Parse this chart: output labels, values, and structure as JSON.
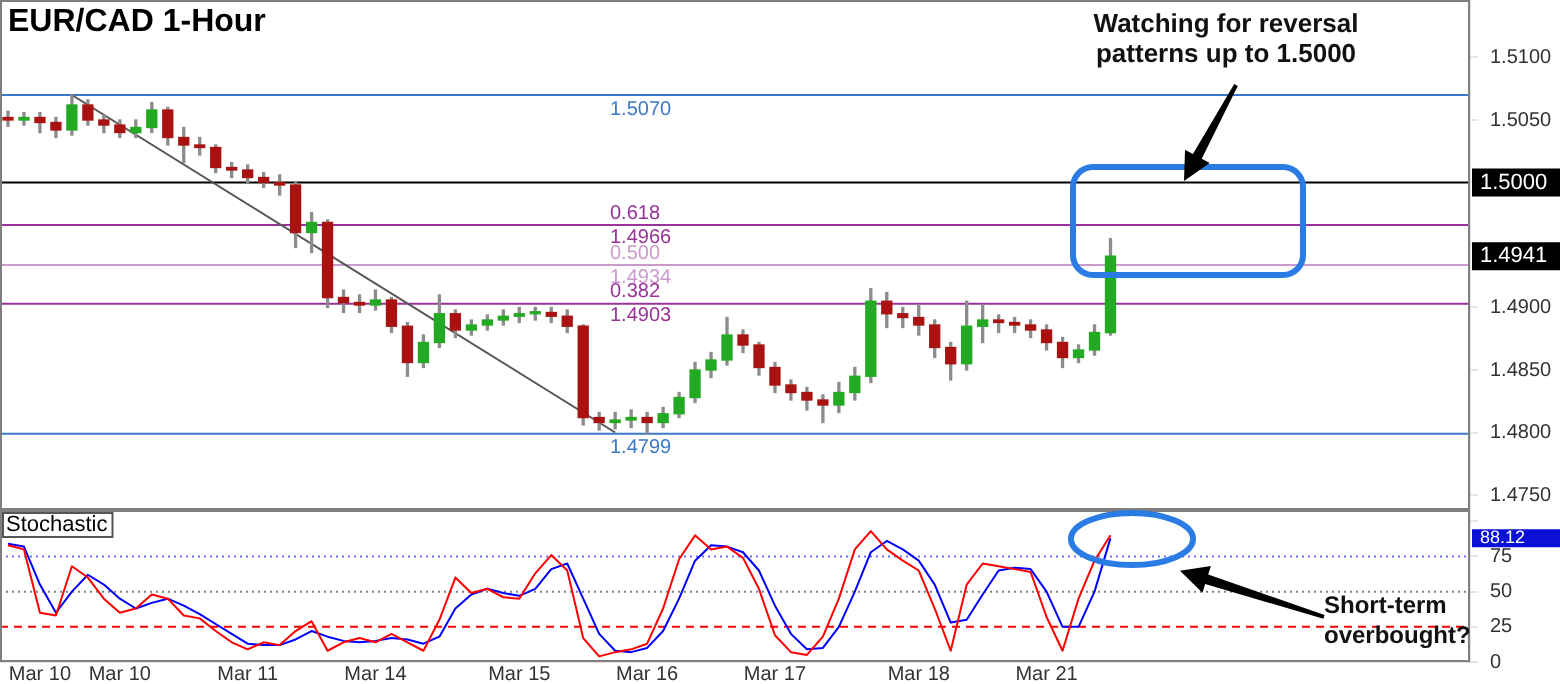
{
  "chart_data": [
    {
      "type": "candlestick",
      "title": "EUR/CAD 1-Hour",
      "categories": [
        null,
        null,
        null,
        null,
        null,
        null,
        null,
        null,
        null,
        null,
        null,
        null,
        null,
        null,
        null,
        null,
        null,
        null,
        null,
        null,
        null,
        null,
        null,
        null,
        null,
        null,
        null,
        null,
        null,
        null,
        null,
        null,
        null,
        null,
        null,
        null,
        null,
        null,
        null,
        null,
        null,
        null,
        null,
        null,
        null,
        null,
        null,
        null,
        null,
        null,
        null,
        null,
        null,
        null,
        null,
        null,
        null,
        null,
        null,
        null,
        null,
        null,
        null,
        null,
        null,
        null,
        null,
        null,
        null,
        null,
        null,
        null,
        null,
        null,
        null,
        null,
        null,
        null,
        null,
        null,
        null,
        null,
        null,
        null,
        null,
        null,
        null,
        null,
        null,
        null,
        null,
        null
      ],
      "ohlc": [
        [
          1.5052,
          1.5057,
          1.5045,
          1.505
        ],
        [
          1.505,
          1.5056,
          1.5046,
          1.5052
        ],
        [
          1.5052,
          1.5056,
          1.504,
          1.5048
        ],
        [
          1.5048,
          1.5052,
          1.5036,
          1.5042
        ],
        [
          1.5042,
          1.507,
          1.5038,
          1.5062
        ],
        [
          1.5062,
          1.5066,
          1.5046,
          1.505
        ],
        [
          1.505,
          1.5054,
          1.504,
          1.5046
        ],
        [
          1.5046,
          1.505,
          1.5036,
          1.504
        ],
        [
          1.504,
          1.505,
          1.5036,
          1.5044
        ],
        [
          1.5044,
          1.5064,
          1.504,
          1.5058
        ],
        [
          1.5058,
          1.506,
          1.503,
          1.5036
        ],
        [
          1.5036,
          1.5044,
          1.5016,
          1.503
        ],
        [
          1.503,
          1.5036,
          1.5022,
          1.5028
        ],
        [
          1.5028,
          1.503,
          1.5008,
          1.5012
        ],
        [
          1.5012,
          1.5016,
          1.5004,
          1.501
        ],
        [
          1.501,
          1.5014,
          1.5,
          1.5004
        ],
        [
          1.5004,
          1.5008,
          1.4996,
          1.5
        ],
        [
          1.5,
          1.5006,
          1.499,
          1.4998
        ],
        [
          1.4998,
          1.5,
          1.4948,
          1.496
        ],
        [
          1.496,
          1.4976,
          1.4944,
          1.4968
        ],
        [
          1.4968,
          1.497,
          1.49,
          1.4908
        ],
        [
          1.4908,
          1.4914,
          1.4896,
          1.4904
        ],
        [
          1.4904,
          1.491,
          1.4896,
          1.4902
        ],
        [
          1.4902,
          1.4914,
          1.4898,
          1.4906
        ],
        [
          1.4906,
          1.4908,
          1.488,
          1.4885
        ],
        [
          1.4885,
          1.4888,
          1.4845,
          1.4856
        ],
        [
          1.4856,
          1.4878,
          1.4852,
          1.4872
        ],
        [
          1.4872,
          1.491,
          1.4868,
          1.4895
        ],
        [
          1.4895,
          1.4898,
          1.4876,
          1.4882
        ],
        [
          1.4882,
          1.489,
          1.4878,
          1.4886
        ],
        [
          1.4886,
          1.4894,
          1.4882,
          1.489
        ],
        [
          1.489,
          1.4898,
          1.4886,
          1.4893
        ],
        [
          1.4893,
          1.49,
          1.4888,
          1.4895
        ],
        [
          1.4895,
          1.49,
          1.489,
          1.4896
        ],
        [
          1.4896,
          1.49,
          1.4888,
          1.4893
        ],
        [
          1.4893,
          1.4898,
          1.488,
          1.4885
        ],
        [
          1.4885,
          1.4886,
          1.4806,
          1.4812
        ],
        [
          1.4812,
          1.4816,
          1.4802,
          1.4808
        ],
        [
          1.4808,
          1.4816,
          1.4803,
          1.481
        ],
        [
          1.481,
          1.4818,
          1.4804,
          1.4812
        ],
        [
          1.4812,
          1.4816,
          1.4799,
          1.4808
        ],
        [
          1.4808,
          1.482,
          1.4804,
          1.4815
        ],
        [
          1.4815,
          1.4832,
          1.4812,
          1.4828
        ],
        [
          1.4828,
          1.4856,
          1.4824,
          1.485
        ],
        [
          1.485,
          1.4864,
          1.4844,
          1.4858
        ],
        [
          1.4858,
          1.4892,
          1.4854,
          1.4878
        ],
        [
          1.4878,
          1.4882,
          1.4864,
          1.487
        ],
        [
          1.487,
          1.4872,
          1.4846,
          1.4852
        ],
        [
          1.4852,
          1.4856,
          1.4832,
          1.4838
        ],
        [
          1.4838,
          1.4842,
          1.4826,
          1.4832
        ],
        [
          1.4832,
          1.4836,
          1.4818,
          1.4826
        ],
        [
          1.4826,
          1.483,
          1.4808,
          1.4822
        ],
        [
          1.4822,
          1.484,
          1.4816,
          1.4832
        ],
        [
          1.4832,
          1.4852,
          1.4826,
          1.4845
        ],
        [
          1.4845,
          1.4915,
          1.484,
          1.4905
        ],
        [
          1.4905,
          1.4912,
          1.4884,
          1.4895
        ],
        [
          1.4895,
          1.49,
          1.4884,
          1.4892
        ],
        [
          1.4892,
          1.4902,
          1.4878,
          1.4886
        ],
        [
          1.4886,
          1.489,
          1.486,
          1.4868
        ],
        [
          1.4868,
          1.4872,
          1.4842,
          1.4855
        ],
        [
          1.4855,
          1.4905,
          1.485,
          1.4885
        ],
        [
          1.4885,
          1.4902,
          1.4872,
          1.489
        ],
        [
          1.489,
          1.4894,
          1.488,
          1.4888
        ],
        [
          1.4888,
          1.4892,
          1.488,
          1.4886
        ],
        [
          1.4886,
          1.489,
          1.4876,
          1.4882
        ],
        [
          1.4882,
          1.4886,
          1.4866,
          1.4872
        ],
        [
          1.4872,
          1.4876,
          1.4852,
          1.486
        ],
        [
          1.486,
          1.487,
          1.4856,
          1.4866
        ],
        [
          1.4866,
          1.4886,
          1.4862,
          1.488
        ],
        [
          1.488,
          1.4955,
          1.4878,
          1.4941
        ],
        null,
        null,
        null,
        null,
        null,
        null,
        null,
        null,
        null,
        null,
        null,
        null,
        null,
        null,
        null,
        null,
        null,
        null,
        null,
        null,
        null,
        null
      ],
      "series": [
        {
          "type": "line",
          "color": "#555555",
          "values": [
            null,
            null,
            null,
            null,
            1.507,
            null,
            null,
            null,
            null,
            null,
            null,
            null,
            null,
            null,
            null,
            null,
            null,
            null,
            null,
            null,
            null,
            null,
            null,
            null,
            null,
            null,
            null,
            null,
            null,
            null,
            null,
            null,
            null,
            null,
            null,
            null,
            null,
            null,
            1.48,
            null,
            null,
            null,
            null,
            null,
            null,
            null,
            null,
            null,
            null,
            null,
            null,
            null,
            null,
            null,
            null,
            null,
            null,
            null,
            null,
            null,
            null,
            null,
            null,
            null,
            null,
            null,
            null,
            null,
            null,
            null,
            null,
            null,
            null,
            null,
            null,
            null,
            null,
            null,
            null,
            null,
            null,
            null,
            null,
            null,
            null,
            null,
            null,
            null,
            null,
            null,
            null,
            null
          ]
        }
      ],
      "ylim": [
        1.4738,
        1.5146
      ],
      "yticks": [
        {
          "value": 1.475,
          "label": "1.4750"
        },
        {
          "value": 1.48,
          "label": "1.4800"
        },
        {
          "value": 1.485,
          "label": "1.4850"
        },
        {
          "value": 1.49,
          "label": "1.4900"
        },
        {
          "value": 1.495,
          "label": null
        },
        {
          "value": 1.5,
          "label": null
        },
        {
          "value": 1.505,
          "label": "1.5050"
        },
        {
          "value": 1.51,
          "label": "1.5100"
        }
      ],
      "tick_labels": "y",
      "ref_lines": [
        {
          "axis": "y",
          "value": 1.507,
          "label": "1.5070",
          "color": "#3c78c8"
        },
        {
          "axis": "y",
          "value": 1.5,
          "color": "#000000"
        },
        {
          "axis": "y",
          "value": 1.4966,
          "label": "0.618\n1.4966",
          "color": "#993399"
        },
        {
          "axis": "y",
          "value": 1.4934,
          "label": "0.500\n1.4934",
          "color": "#cc99cc"
        },
        {
          "axis": "y",
          "value": 1.4903,
          "label": "0.382\n1.4903",
          "color": "#993399"
        },
        {
          "axis": "y",
          "value": 1.4799,
          "label": "1.4799",
          "color": "#3c78c8"
        }
      ],
      "annotations": [
        "Watching for reversal patterns up to 1.5000",
        {
          "text": "1.5000",
          "y": 1.5
        },
        {
          "text": "1.4941",
          "y": 1.4941
        }
      ]
    },
    {
      "type": "line",
      "title": "Stochastic",
      "categories": [
        null,
        null,
        "Mar 10",
        null,
        null,
        null,
        null,
        "Mar 10",
        null,
        null,
        null,
        null,
        null,
        null,
        null,
        "Mar 11",
        null,
        null,
        null,
        null,
        null,
        null,
        null,
        "Mar 14",
        null,
        null,
        null,
        null,
        null,
        null,
        null,
        null,
        "Mar 15",
        null,
        null,
        null,
        null,
        null,
        null,
        null,
        "Mar 16",
        null,
        null,
        null,
        null,
        null,
        null,
        null,
        "Mar 17",
        null,
        null,
        null,
        null,
        null,
        null,
        null,
        null,
        "Mar 18",
        null,
        null,
        null,
        null,
        null,
        null,
        null,
        "Mar 21",
        null,
        null,
        null,
        null,
        null,
        null,
        null,
        null,
        null,
        null,
        null,
        null,
        null,
        null,
        null,
        null,
        null,
        null,
        null,
        null,
        null,
        null,
        null,
        null,
        null,
        null
      ],
      "series": [
        {
          "color": "#ff0000",
          "values": [
            83,
            80,
            35,
            33,
            68,
            60,
            45,
            35,
            38,
            48,
            45,
            33,
            31,
            22,
            14,
            9,
            14,
            12,
            22,
            29,
            8,
            14,
            17,
            14,
            20,
            14,
            8,
            30,
            60,
            49,
            52,
            46,
            45,
            63,
            76,
            65,
            17,
            4,
            7,
            9,
            13,
            38,
            73,
            90,
            80,
            82,
            74,
            52,
            19,
            7,
            5,
            18,
            45,
            80,
            93,
            80,
            72,
            65,
            38,
            8,
            55,
            70,
            68,
            66,
            64,
            32,
            8,
            45,
            72,
            90,
            null,
            null,
            null,
            null,
            null,
            null,
            null,
            null,
            null,
            null,
            null,
            null,
            null,
            null,
            null,
            null,
            null,
            null,
            null,
            null,
            null,
            null
          ]
        },
        {
          "color": "#0000ff",
          "values": [
            84,
            82,
            55,
            35,
            50,
            62,
            55,
            45,
            38,
            42,
            45,
            40,
            34,
            27,
            20,
            13,
            12,
            12,
            16,
            22,
            18,
            15,
            14,
            15,
            17,
            16,
            13,
            18,
            38,
            48,
            52,
            49,
            47,
            52,
            66,
            70,
            45,
            20,
            8,
            7,
            10,
            22,
            45,
            72,
            83,
            82,
            78,
            65,
            40,
            20,
            9,
            10,
            25,
            50,
            78,
            86,
            80,
            72,
            55,
            28,
            30,
            48,
            65,
            67,
            66,
            50,
            25,
            25,
            50,
            88,
            null,
            null,
            null,
            null,
            null,
            null,
            null,
            null,
            null,
            null,
            null,
            null,
            null,
            null,
            null,
            null,
            null,
            null,
            null,
            null,
            null,
            null
          ]
        }
      ],
      "ylim": [
        0,
        108
      ],
      "yticks": [
        0,
        25,
        50,
        75,
        {
          "value": 100,
          "label": null
        }
      ],
      "ref_lines": [
        {
          "axis": "y",
          "value": 75,
          "color": "#7070ff",
          "line_style": "dotted"
        },
        {
          "axis": "y",
          "value": 50,
          "color": "#808080",
          "line_style": "dotted"
        },
        {
          "axis": "y",
          "value": 25,
          "color": "#ff0000",
          "line_style": "dashed"
        }
      ],
      "annotations": [
        "Short-term overbought?",
        "88.12"
      ]
    }
  ]
}
